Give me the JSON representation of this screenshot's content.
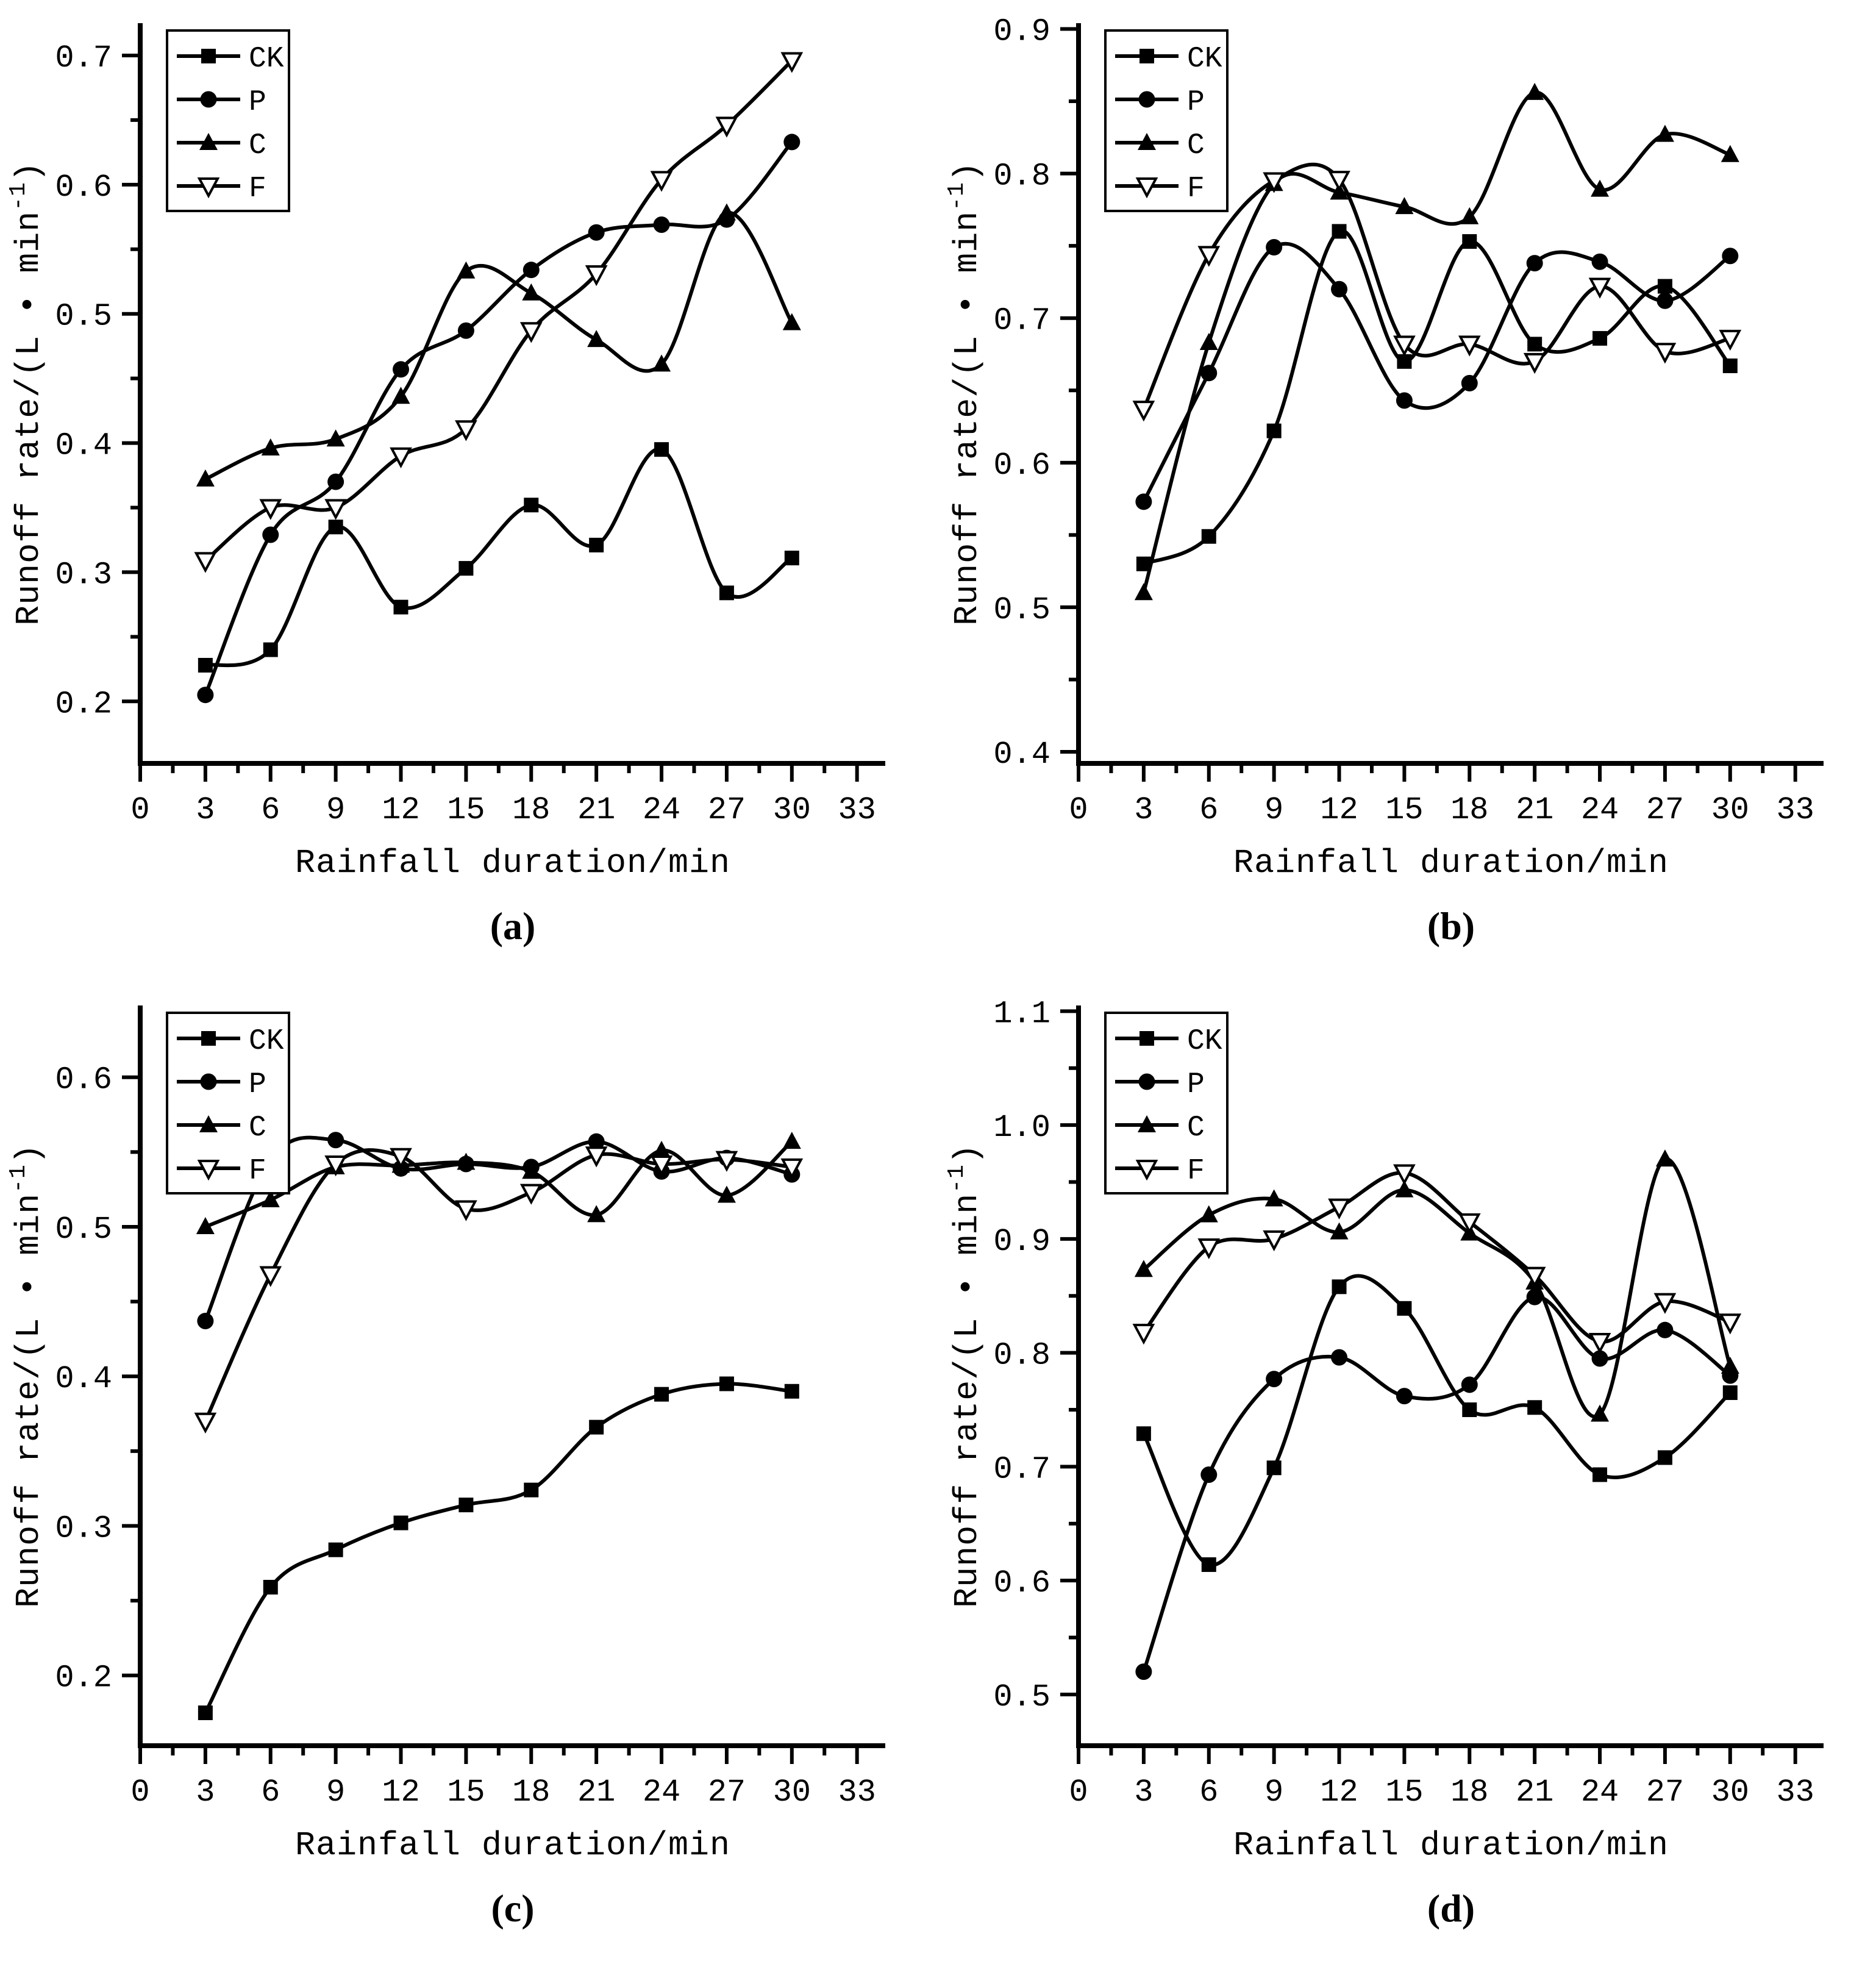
{
  "figure": {
    "background_color": "#ffffff",
    "line_color": "#000000",
    "x_axis_label": "Rainfall duration/min",
    "y_axis_label_main": "Runoff rate/(L • min",
    "y_axis_label_superscript": "-1",
    "y_axis_label_end": ")",
    "legend_entries": [
      {
        "label": "CK",
        "marker": "filled-square"
      },
      {
        "label": "P",
        "marker": "filled-circle"
      },
      {
        "label": "C",
        "marker": "filled-triangle-up"
      },
      {
        "label": "F",
        "marker": "open-triangle-down"
      }
    ],
    "legend_position": "top-left"
  },
  "chart_data": [
    {
      "type": "line",
      "panel": "a",
      "caption": "(a)",
      "title": "",
      "xlabel": "Rainfall duration/min",
      "ylabel": "Runoff rate/(L • min⁻¹)",
      "x": [
        3,
        6,
        9,
        12,
        15,
        18,
        21,
        24,
        27,
        30
      ],
      "xlim": [
        0,
        34.3
      ],
      "xticks": [
        0,
        3,
        6,
        9,
        12,
        15,
        18,
        21,
        24,
        27,
        30,
        33
      ],
      "x_minor_step": 1.5,
      "ylim": [
        0.152,
        0.725
      ],
      "yticks": [
        0.2,
        0.3,
        0.4,
        0.5,
        0.6,
        0.7
      ],
      "y_minor_step": 0.05,
      "grid": false,
      "series": [
        {
          "name": "CK",
          "marker": "filled-square",
          "values": [
            0.228,
            0.24,
            0.335,
            0.273,
            0.303,
            0.352,
            0.321,
            0.395,
            0.284,
            0.311
          ]
        },
        {
          "name": "P",
          "marker": "filled-circle",
          "values": [
            0.205,
            0.329,
            0.37,
            0.457,
            0.487,
            0.534,
            0.563,
            0.569,
            0.573,
            0.633
          ]
        },
        {
          "name": "C",
          "marker": "filled-triangle-up",
          "values": [
            0.372,
            0.396,
            0.403,
            0.436,
            0.533,
            0.516,
            0.48,
            0.461,
            0.578,
            0.493
          ]
        },
        {
          "name": "F",
          "marker": "open-triangle-down",
          "values": [
            0.309,
            0.35,
            0.35,
            0.39,
            0.411,
            0.487,
            0.531,
            0.604,
            0.646,
            0.696
          ]
        }
      ]
    },
    {
      "type": "line",
      "panel": "b",
      "caption": "(b)",
      "title": "",
      "xlabel": "Rainfall duration/min",
      "ylabel": "Runoff rate/(L • min⁻¹)",
      "x": [
        3,
        6,
        9,
        12,
        15,
        18,
        21,
        24,
        27,
        30
      ],
      "xlim": [
        0,
        34.3
      ],
      "xticks": [
        0,
        3,
        6,
        9,
        12,
        15,
        18,
        21,
        24,
        27,
        30,
        33
      ],
      "x_minor_step": 1.5,
      "ylim": [
        0.392,
        0.904
      ],
      "yticks": [
        0.4,
        0.5,
        0.6,
        0.7,
        0.8,
        0.9
      ],
      "y_minor_step": 0.05,
      "grid": false,
      "series": [
        {
          "name": "CK",
          "marker": "filled-square",
          "values": [
            0.53,
            0.549,
            0.622,
            0.76,
            0.67,
            0.753,
            0.682,
            0.686,
            0.722,
            0.667
          ]
        },
        {
          "name": "P",
          "marker": "filled-circle",
          "values": [
            0.573,
            0.662,
            0.749,
            0.72,
            0.643,
            0.655,
            0.738,
            0.739,
            0.712,
            0.743
          ]
        },
        {
          "name": "C",
          "marker": "filled-triangle-up",
          "values": [
            0.51,
            0.683,
            0.793,
            0.787,
            0.777,
            0.77,
            0.856,
            0.789,
            0.827,
            0.813
          ]
        },
        {
          "name": "F",
          "marker": "open-triangle-down",
          "values": [
            0.637,
            0.744,
            0.795,
            0.796,
            0.682,
            0.682,
            0.67,
            0.722,
            0.677,
            0.686
          ]
        }
      ]
    },
    {
      "type": "line",
      "panel": "c",
      "caption": "(c)",
      "title": "",
      "xlabel": "Rainfall duration/min",
      "ylabel": "Runoff rate/(L • min⁻¹)",
      "x": [
        3,
        6,
        9,
        12,
        15,
        18,
        21,
        24,
        27,
        30
      ],
      "xlim": [
        0,
        34.3
      ],
      "xticks": [
        0,
        3,
        6,
        9,
        12,
        15,
        18,
        21,
        24,
        27,
        30,
        33
      ],
      "x_minor_step": 1.5,
      "ylim": [
        0.153,
        0.648
      ],
      "yticks": [
        0.2,
        0.3,
        0.4,
        0.5,
        0.6
      ],
      "y_minor_step": 0.05,
      "grid": false,
      "series": [
        {
          "name": "CK",
          "marker": "filled-square",
          "values": [
            0.175,
            0.259,
            0.284,
            0.302,
            0.314,
            0.324,
            0.366,
            0.388,
            0.395,
            0.39
          ]
        },
        {
          "name": "P",
          "marker": "filled-circle",
          "values": [
            0.437,
            0.545,
            0.558,
            0.539,
            0.542,
            0.54,
            0.557,
            0.537,
            0.546,
            0.535
          ]
        },
        {
          "name": "C",
          "marker": "filled-triangle-up",
          "values": [
            0.5,
            0.518,
            0.54,
            0.541,
            0.543,
            0.537,
            0.508,
            0.551,
            0.521,
            0.557
          ]
        },
        {
          "name": "F",
          "marker": "open-triangle-down",
          "values": [
            0.37,
            0.468,
            0.542,
            0.547,
            0.512,
            0.523,
            0.548,
            0.542,
            0.545,
            0.54
          ]
        }
      ]
    },
    {
      "type": "line",
      "panel": "d",
      "caption": "(d)",
      "title": "",
      "xlabel": "Rainfall duration/min",
      "ylabel": "Runoff rate/(L • min⁻¹)",
      "x": [
        3,
        6,
        9,
        12,
        15,
        18,
        21,
        24,
        27,
        30
      ],
      "xlim": [
        0,
        34.3
      ],
      "xticks": [
        0,
        3,
        6,
        9,
        12,
        15,
        18,
        21,
        24,
        27,
        30,
        33
      ],
      "x_minor_step": 1.5,
      "ylim": [
        0.455,
        1.105
      ],
      "yticks": [
        0.5,
        0.6,
        0.7,
        0.8,
        0.9,
        1.0,
        1.1
      ],
      "y_minor_step": 0.05,
      "grid": false,
      "series": [
        {
          "name": "CK",
          "marker": "filled-square",
          "values": [
            0.729,
            0.614,
            0.699,
            0.858,
            0.839,
            0.75,
            0.752,
            0.693,
            0.708,
            0.765
          ]
        },
        {
          "name": "P",
          "marker": "filled-circle",
          "values": [
            0.52,
            0.693,
            0.777,
            0.796,
            0.762,
            0.772,
            0.849,
            0.795,
            0.82,
            0.78
          ]
        },
        {
          "name": "C",
          "marker": "filled-triangle-up",
          "values": [
            0.873,
            0.921,
            0.935,
            0.906,
            0.943,
            0.905,
            0.862,
            0.746,
            0.97,
            0.788
          ]
        },
        {
          "name": "F",
          "marker": "open-triangle-down",
          "values": [
            0.818,
            0.893,
            0.9,
            0.928,
            0.958,
            0.915,
            0.868,
            0.81,
            0.845,
            0.827
          ]
        }
      ]
    }
  ]
}
